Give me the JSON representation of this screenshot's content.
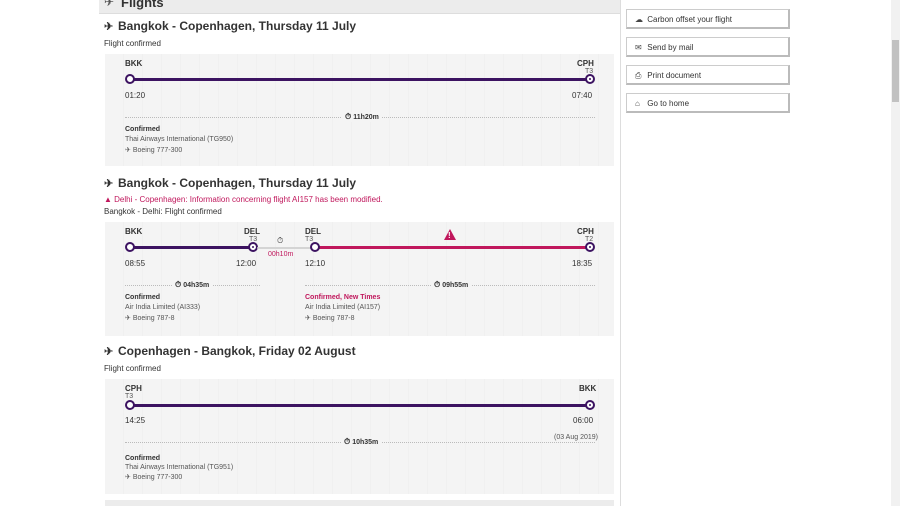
{
  "section": {
    "title": "Flights"
  },
  "flights": [
    {
      "title": "Bangkok - Copenhagen, Thursday 11 July",
      "status": "Flight confirmed",
      "from_code": "BKK",
      "to_code": "CPH",
      "to_terminal": "T3",
      "dep_time": "01:20",
      "arr_time": "07:40",
      "duration": "11h20m",
      "confirm": "Confirmed",
      "airline": "Thai Airways International (TG950)",
      "aircraft": "Boeing 777-300"
    },
    {
      "title": "Bangkok - Copenhagen, Thursday 11 July",
      "warning": "Delhi - Copenhagen: Information concerning flight AI157 has been modified.",
      "status": "Bangkok - Delhi: Flight confirmed",
      "leg1": {
        "from_code": "BKK",
        "to_code": "DEL",
        "to_terminal": "T3",
        "dep_time": "08:55",
        "arr_time": "12:00",
        "duration": "04h35m",
        "confirm": "Confirmed",
        "airline": "Air India Limited (AI333)",
        "aircraft": "Boeing 787-8"
      },
      "layover": "00h10m",
      "leg2": {
        "from_code": "DEL",
        "from_terminal": "T3",
        "to_code": "CPH",
        "to_terminal": "T2",
        "dep_time": "12:10",
        "arr_time": "18:35",
        "duration": "09h55m",
        "confirm": "Confirmed, New Times",
        "airline": "Air India Limited (AI157)",
        "aircraft": "Boeing 787-8"
      }
    },
    {
      "title": "Copenhagen - Bangkok, Friday 02 August",
      "status": "Flight confirmed",
      "from_code": "CPH",
      "from_terminal": "T3",
      "to_code": "BKK",
      "dep_time": "14:25",
      "arr_time": "06:00",
      "duration": "10h35m",
      "arr_date": "(03 Aug 2019)",
      "confirm": "Confirmed",
      "airline": "Thai Airways International (TG951)",
      "aircraft": "Boeing 777-300"
    }
  ],
  "sidebar": {
    "carbon": "Carbon offset your flight",
    "mail": "Send by mail",
    "print": "Print document",
    "home": "Go to home"
  },
  "icons": {
    "plane": "plane-icon",
    "clock": "clock-icon",
    "warning": "warning-icon",
    "cloud": "cloud-icon",
    "mail": "mail-icon",
    "print": "print-icon",
    "home": "home-icon"
  },
  "colors": {
    "purple": "#3c1361",
    "pink": "#c0175c"
  }
}
